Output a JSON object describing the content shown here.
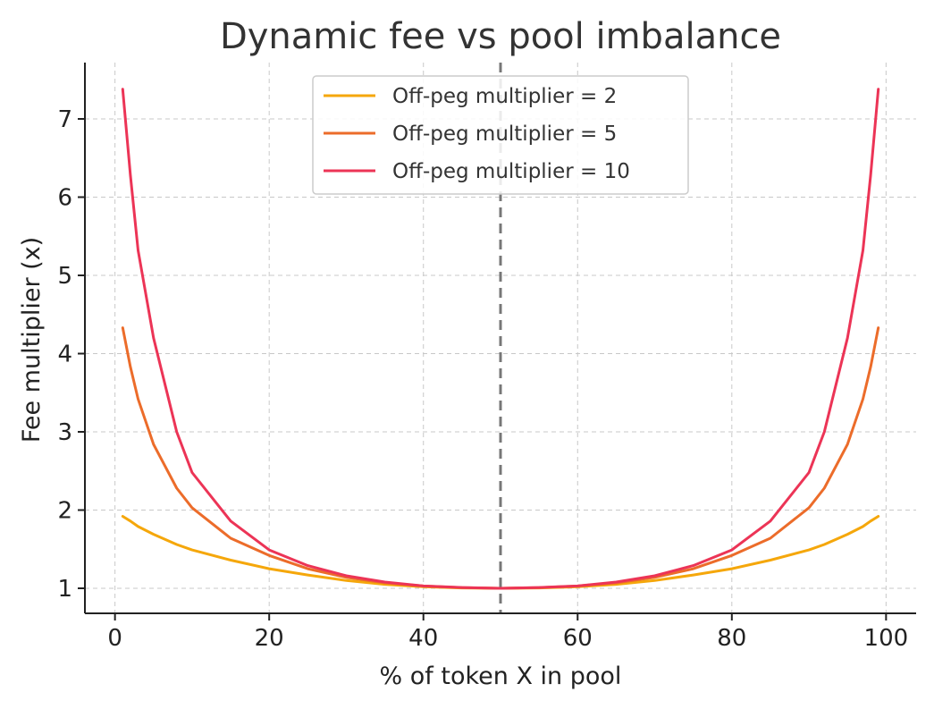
{
  "chart_data": {
    "type": "line",
    "title": "Dynamic fee vs pool imbalance",
    "xlabel": "% of token X in pool",
    "ylabel": "Fee multiplier (x)",
    "xlim": [
      -3.9,
      103.9
    ],
    "ylim": [
      0.68,
      7.72
    ],
    "xticks": [
      0,
      20,
      40,
      60,
      80,
      100
    ],
    "yticks": [
      1,
      2,
      3,
      4,
      5,
      6,
      7
    ],
    "grid": true,
    "legend_position": "top-center",
    "reference_line": {
      "x": 50,
      "style": "dashed",
      "color": "#777777"
    },
    "series": [
      {
        "name": "Off-peg multiplier = 2",
        "color": "#f5a70b",
        "x": [
          1,
          2,
          3,
          5,
          8,
          10,
          15,
          20,
          25,
          30,
          35,
          40,
          45,
          50,
          55,
          60,
          65,
          70,
          75,
          80,
          85,
          90,
          92,
          95,
          97,
          98,
          99
        ],
        "y": [
          1.92,
          1.86,
          1.79,
          1.69,
          1.56,
          1.49,
          1.36,
          1.25,
          1.17,
          1.1,
          1.05,
          1.02,
          1.005,
          1.0,
          1.005,
          1.02,
          1.05,
          1.1,
          1.17,
          1.25,
          1.36,
          1.49,
          1.56,
          1.69,
          1.79,
          1.86,
          1.92
        ]
      },
      {
        "name": "Off-peg multiplier = 5",
        "color": "#ec6c2a",
        "x": [
          1,
          2,
          3,
          5,
          8,
          10,
          15,
          20,
          25,
          30,
          35,
          40,
          45,
          50,
          55,
          60,
          65,
          70,
          75,
          80,
          85,
          90,
          92,
          95,
          97,
          98,
          99
        ],
        "y": [
          4.33,
          3.83,
          3.42,
          2.84,
          2.28,
          2.03,
          1.64,
          1.42,
          1.25,
          1.14,
          1.07,
          1.03,
          1.008,
          1.0,
          1.008,
          1.03,
          1.07,
          1.14,
          1.25,
          1.42,
          1.64,
          2.03,
          2.28,
          2.84,
          3.42,
          3.83,
          4.33
        ]
      },
      {
        "name": "Off-peg multiplier = 10",
        "color": "#ec3456",
        "x": [
          1,
          2,
          3,
          5,
          8,
          10,
          15,
          20,
          25,
          30,
          35,
          40,
          45,
          50,
          55,
          60,
          65,
          70,
          75,
          80,
          85,
          90,
          92,
          95,
          97,
          98,
          99
        ],
        "y": [
          7.38,
          6.28,
          5.32,
          4.2,
          3.0,
          2.48,
          1.86,
          1.49,
          1.29,
          1.16,
          1.08,
          1.03,
          1.01,
          1.0,
          1.01,
          1.03,
          1.08,
          1.16,
          1.29,
          1.49,
          1.86,
          2.48,
          3.0,
          4.2,
          5.32,
          6.28,
          7.38
        ]
      }
    ]
  }
}
